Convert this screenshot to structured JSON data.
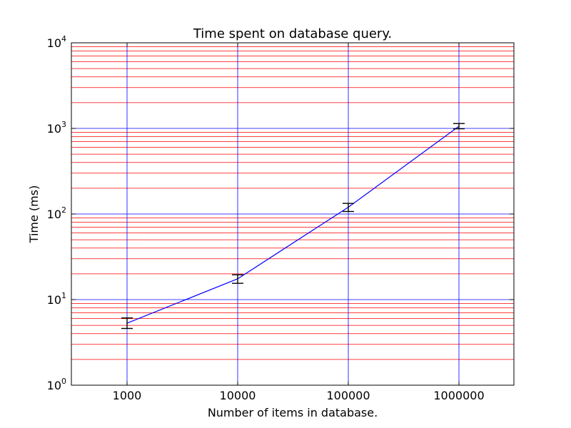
{
  "chart_data": {
    "type": "line",
    "title": "Time spent on database query.",
    "xlabel": "Number of items in database.",
    "ylabel": "Time (ms)",
    "x_scale": "categorical",
    "y_scale": "log",
    "categories": [
      "1000",
      "10000",
      "100000",
      "1000000"
    ],
    "y_ticks": [
      {
        "base": "10",
        "exp": "0",
        "value": 1
      },
      {
        "base": "10",
        "exp": "1",
        "value": 10
      },
      {
        "base": "10",
        "exp": "2",
        "value": 100
      },
      {
        "base": "10",
        "exp": "3",
        "value": 1000
      },
      {
        "base": "10",
        "exp": "4",
        "value": 10000
      }
    ],
    "ylim": [
      1,
      10000
    ],
    "series": [
      {
        "values": [
          5.3,
          17.5,
          120,
          1060
        ],
        "err_low": [
          4.6,
          15.5,
          107,
          990
        ],
        "err_high": [
          6.1,
          19.5,
          133,
          1140
        ],
        "color": "#0000ff",
        "errorbar_color": "#000000"
      }
    ],
    "grid": {
      "x_major": true,
      "y_major": true,
      "y_minor": true,
      "major_color": "#0000ff",
      "minor_color": "#ff0000"
    },
    "legend": "none"
  }
}
